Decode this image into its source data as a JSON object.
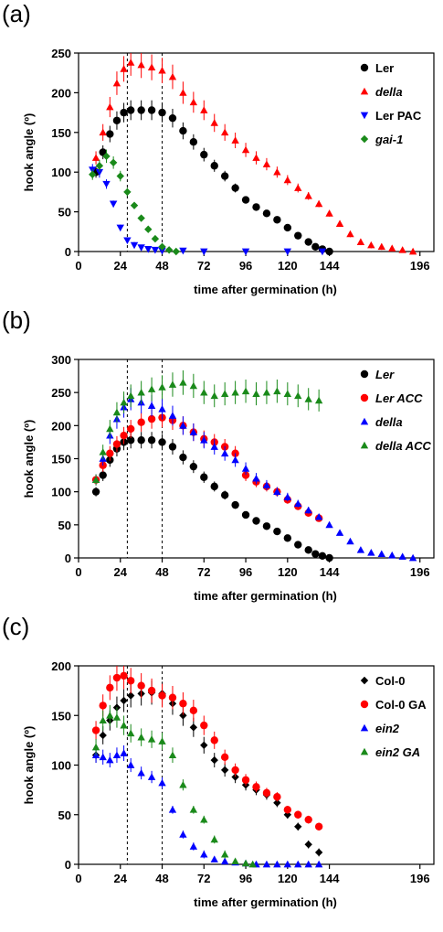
{
  "panels": [
    {
      "label": "(a)"
    },
    {
      "label": "(b)"
    },
    {
      "label": "(c)"
    }
  ],
  "chart_data": [
    {
      "type": "scatter",
      "xlabel": "time after germination (h)",
      "ylabel": "hook angle (º)",
      "xlim": [
        0,
        204
      ],
      "ylim": [
        0,
        250
      ],
      "xticks": [
        0,
        24,
        48,
        72,
        96,
        120,
        144,
        196
      ],
      "yticks": [
        0,
        50,
        100,
        150,
        200,
        250
      ],
      "vlines": [
        28,
        48
      ],
      "legend_position": "right",
      "series": [
        {
          "name": "Ler",
          "italic": false,
          "color": "#000000",
          "marker": "circle",
          "x": [
            10,
            14,
            18,
            22,
            26,
            30,
            36,
            42,
            48,
            54,
            60,
            66,
            72,
            78,
            84,
            90,
            96,
            102,
            108,
            114,
            120,
            126,
            132,
            136,
            140,
            144
          ],
          "y": [
            100,
            125,
            148,
            165,
            175,
            178,
            178,
            178,
            175,
            168,
            152,
            138,
            122,
            108,
            95,
            80,
            65,
            56,
            48,
            40,
            30,
            20,
            12,
            6,
            3,
            0
          ]
        },
        {
          "name": "della",
          "italic": true,
          "color": "#ff0000",
          "marker": "triangle-up",
          "x": [
            10,
            14,
            18,
            22,
            26,
            30,
            36,
            42,
            48,
            54,
            60,
            66,
            72,
            78,
            84,
            90,
            96,
            102,
            108,
            114,
            120,
            126,
            132,
            138,
            144,
            150,
            156,
            162,
            168,
            174,
            180,
            186,
            192
          ],
          "y": [
            118,
            150,
            182,
            212,
            230,
            238,
            235,
            232,
            228,
            220,
            200,
            188,
            178,
            162,
            150,
            140,
            128,
            118,
            110,
            100,
            90,
            80,
            70,
            60,
            48,
            35,
            22,
            12,
            8,
            6,
            4,
            2,
            0
          ]
        },
        {
          "name": "Ler PAC",
          "italic": false,
          "color": "#0000ff",
          "marker": "triangle-down",
          "x": [
            8,
            12,
            16,
            20,
            24,
            28,
            32,
            36,
            40,
            44,
            48,
            60,
            72,
            96,
            120,
            140
          ],
          "y": [
            103,
            100,
            85,
            60,
            30,
            14,
            8,
            5,
            3,
            2,
            1,
            1,
            0,
            0,
            0,
            0
          ]
        },
        {
          "name": "gai-1",
          "italic": true,
          "color": "#1a8a1a",
          "marker": "diamond",
          "x": [
            8,
            12,
            16,
            20,
            24,
            28,
            32,
            36,
            40,
            44,
            48,
            52,
            56
          ],
          "y": [
            97,
            108,
            120,
            112,
            95,
            75,
            58,
            42,
            28,
            16,
            6,
            2,
            0
          ]
        }
      ]
    },
    {
      "type": "scatter",
      "xlabel": "time after germination (h)",
      "ylabel": "hook angle (º)",
      "xlim": [
        0,
        204
      ],
      "ylim": [
        0,
        300
      ],
      "xticks": [
        0,
        24,
        48,
        72,
        96,
        120,
        144,
        196
      ],
      "yticks": [
        0,
        50,
        100,
        150,
        200,
        250,
        300
      ],
      "vlines": [
        28,
        48
      ],
      "legend_position": "right",
      "series": [
        {
          "name": "Ler",
          "italic": true,
          "color": "#000000",
          "marker": "circle",
          "x": [
            10,
            14,
            18,
            22,
            26,
            30,
            36,
            42,
            48,
            54,
            60,
            66,
            72,
            78,
            84,
            90,
            96,
            102,
            108,
            114,
            120,
            126,
            132,
            136,
            140,
            144
          ],
          "y": [
            100,
            125,
            148,
            165,
            175,
            178,
            178,
            178,
            175,
            168,
            152,
            138,
            122,
            108,
            95,
            80,
            65,
            56,
            48,
            40,
            30,
            20,
            12,
            6,
            3,
            0
          ]
        },
        {
          "name": "Ler ACC",
          "italic": true,
          "color": "#ff0000",
          "marker": "circle",
          "x": [
            10,
            14,
            18,
            22,
            26,
            30,
            36,
            42,
            48,
            54,
            60,
            66,
            72,
            78,
            84,
            90,
            96,
            102,
            108,
            114,
            120,
            126,
            132,
            138
          ],
          "y": [
            118,
            140,
            158,
            172,
            185,
            195,
            205,
            210,
            212,
            208,
            200,
            190,
            180,
            175,
            168,
            158,
            125,
            115,
            108,
            100,
            88,
            78,
            68,
            60
          ]
        },
        {
          "name": "della",
          "italic": true,
          "color": "#0000ff",
          "marker": "triangle-up",
          "x": [
            10,
            14,
            18,
            22,
            26,
            30,
            36,
            42,
            48,
            54,
            60,
            66,
            72,
            78,
            84,
            90,
            96,
            102,
            108,
            114,
            120,
            126,
            132,
            138,
            144,
            150,
            156,
            162,
            168,
            174,
            180,
            186,
            192
          ],
          "y": [
            118,
            150,
            185,
            210,
            228,
            240,
            235,
            230,
            225,
            215,
            200,
            190,
            178,
            168,
            158,
            148,
            135,
            120,
            110,
            100,
            92,
            82,
            72,
            62,
            50,
            38,
            25,
            12,
            8,
            6,
            4,
            2,
            0
          ]
        },
        {
          "name": "della ACC",
          "italic": true,
          "color": "#1a8a1a",
          "marker": "triangle-up",
          "x": [
            10,
            14,
            18,
            22,
            26,
            30,
            36,
            42,
            48,
            54,
            60,
            66,
            72,
            78,
            84,
            90,
            96,
            102,
            108,
            114,
            120,
            126,
            132,
            138
          ],
          "y": [
            118,
            160,
            195,
            220,
            235,
            245,
            250,
            255,
            258,
            262,
            265,
            260,
            250,
            245,
            248,
            250,
            252,
            248,
            250,
            252,
            248,
            245,
            240,
            238
          ]
        }
      ]
    },
    {
      "type": "scatter",
      "xlabel": "time after germination (h)",
      "ylabel": "hook angle (º)",
      "xlim": [
        0,
        204
      ],
      "ylim": [
        0,
        200
      ],
      "xticks": [
        0,
        24,
        48,
        72,
        96,
        120,
        144,
        196
      ],
      "yticks": [
        0,
        50,
        100,
        150,
        200
      ],
      "vlines": [
        28,
        48
      ],
      "legend_position": "right",
      "series": [
        {
          "name": "Col-0",
          "italic": false,
          "color": "#000000",
          "marker": "diamond",
          "x": [
            10,
            14,
            18,
            22,
            26,
            30,
            36,
            42,
            48,
            54,
            60,
            66,
            72,
            78,
            84,
            90,
            96,
            102,
            108,
            114,
            120,
            126,
            132,
            138
          ],
          "y": [
            110,
            130,
            145,
            158,
            165,
            170,
            172,
            173,
            172,
            162,
            150,
            138,
            120,
            105,
            95,
            88,
            80,
            75,
            70,
            62,
            50,
            38,
            20,
            12
          ]
        },
        {
          "name": "Col-0 GA",
          "italic": false,
          "color": "#ff0000",
          "marker": "circle",
          "x": [
            10,
            14,
            18,
            22,
            26,
            30,
            36,
            42,
            48,
            54,
            60,
            66,
            72,
            78,
            84,
            90,
            96,
            102,
            108,
            114,
            120,
            126,
            132,
            138
          ],
          "y": [
            135,
            160,
            178,
            188,
            190,
            185,
            180,
            175,
            170,
            168,
            162,
            155,
            140,
            125,
            108,
            95,
            85,
            78,
            72,
            68,
            55,
            50,
            45,
            38
          ]
        },
        {
          "name": "ein2",
          "italic": true,
          "color": "#0000ff",
          "marker": "triangle-up",
          "x": [
            10,
            14,
            18,
            22,
            26,
            30,
            36,
            42,
            48,
            54,
            60,
            66,
            72,
            78,
            84,
            90,
            96,
            102,
            108,
            114,
            120,
            126,
            132,
            138
          ],
          "y": [
            110,
            108,
            105,
            110,
            112,
            100,
            92,
            88,
            82,
            55,
            30,
            18,
            10,
            5,
            3,
            2,
            1,
            0,
            0,
            0,
            0,
            0,
            0,
            0
          ]
        },
        {
          "name": "ein2 GA",
          "italic": true,
          "color": "#1a8a1a",
          "marker": "triangle-up",
          "x": [
            10,
            14,
            18,
            22,
            26,
            30,
            36,
            42,
            48,
            54,
            60,
            66,
            72,
            78,
            84,
            90,
            96,
            100
          ],
          "y": [
            118,
            145,
            150,
            148,
            140,
            132,
            128,
            126,
            124,
            110,
            80,
            55,
            45,
            25,
            10,
            3,
            1,
            0
          ]
        }
      ]
    }
  ]
}
